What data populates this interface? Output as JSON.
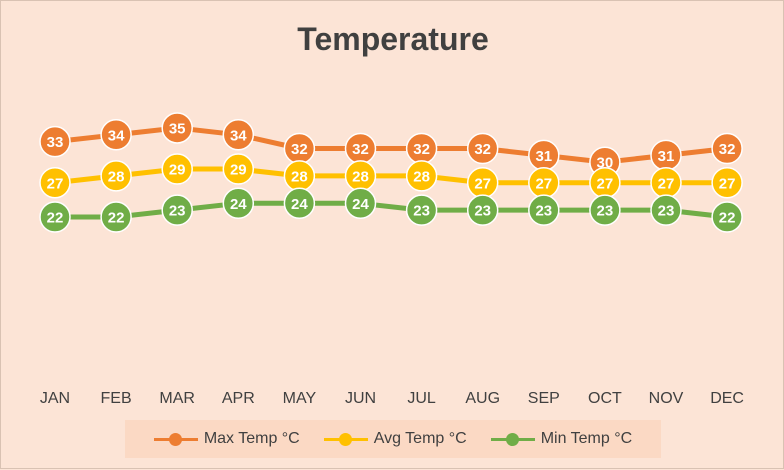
{
  "chart_data": {
    "type": "line",
    "title": "Temperature",
    "categories": [
      "JAN",
      "FEB",
      "MAR",
      "APR",
      "MAY",
      "JUN",
      "JUL",
      "AUG",
      "SEP",
      "OCT",
      "NOV",
      "DEC"
    ],
    "series": [
      {
        "name": "Max Temp °C",
        "color": "#ed7d31",
        "values": [
          33,
          34,
          35,
          34,
          32,
          32,
          32,
          32,
          31,
          30,
          31,
          32
        ]
      },
      {
        "name": "Avg Temp °C",
        "color": "#ffc000",
        "values": [
          27,
          28,
          29,
          29,
          28,
          28,
          28,
          27,
          27,
          27,
          27,
          27
        ]
      },
      {
        "name": "Min Temp °C",
        "color": "#70ad47",
        "values": [
          22,
          22,
          23,
          24,
          24,
          24,
          23,
          23,
          23,
          23,
          23,
          22
        ]
      }
    ],
    "ylim": [
      0,
      40
    ],
    "grid": false,
    "legend": "bottom",
    "data_labels": true
  }
}
